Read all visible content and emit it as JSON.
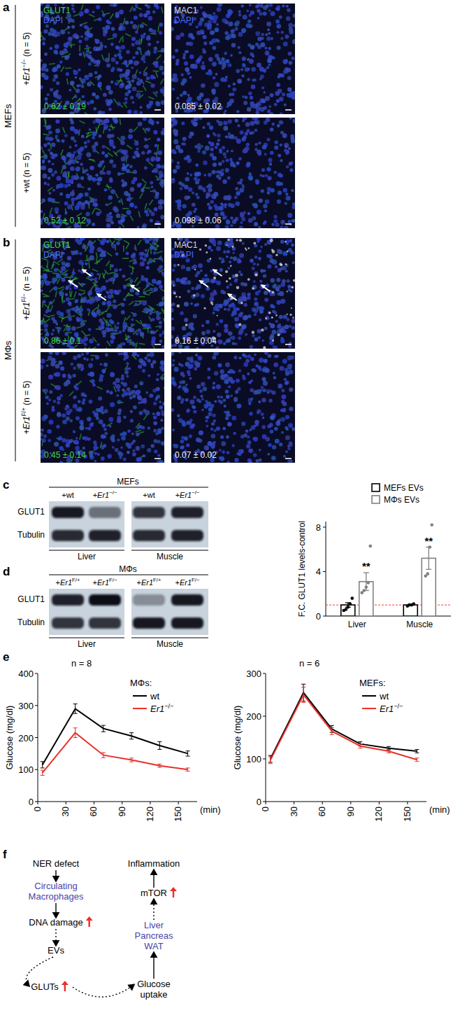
{
  "panel_labels": [
    "a",
    "b",
    "c",
    "d",
    "e",
    "f"
  ],
  "microscopy": [
    {
      "group": "MEFs",
      "columns": [
        [
          "GLUT1",
          "DAPI"
        ],
        [
          "MAC1",
          "DAPI"
        ]
      ],
      "rows": [
        {
          "label": "+Er1−/− (n = 5)",
          "quants": [
            "0.62 ± 0.19",
            "0.085 ± 0.02"
          ]
        },
        {
          "label": "+wt (n = 5)",
          "quants": [
            "0.52 ± 0.12",
            "0.098 ± 0.06"
          ]
        }
      ]
    },
    {
      "group": "MΦs",
      "columns": [
        [
          "GLUT1",
          "DAPI"
        ],
        [
          "MAC1",
          "DAPI"
        ]
      ],
      "rows": [
        {
          "label": "+Er1F/− (n = 5)",
          "quants": [
            "0.86 ± 0.1",
            "0.16 ± 0.04"
          ]
        },
        {
          "label": "+Er1F/+ (n = 5)",
          "quants": [
            "0.45 ± 0.14",
            "0.07 ± 0.02"
          ]
        }
      ]
    }
  ],
  "blots": [
    {
      "group": "MEFs",
      "lanes": [
        "+wt",
        "+Er1−/−",
        "+wt",
        "+Er1−/−"
      ],
      "rows": [
        "GLUT1",
        "Tubulin"
      ],
      "tissues": [
        "Liver",
        "Muscle"
      ]
    },
    {
      "group": "MΦs",
      "lanes": [
        "+Er1F/+",
        "+Er1F/−",
        "+Er1F/+",
        "+Er1F/−"
      ],
      "rows": [
        "GLUT1",
        "Tubulin"
      ],
      "tissues": [
        "Liver",
        "Muscle"
      ]
    }
  ],
  "chart_data": [
    {
      "type": "bar",
      "ylabel": "F.C. GLUT1 levels-control",
      "categories": [
        "Liver",
        "Muscle"
      ],
      "ylim": [
        0,
        8.5
      ],
      "yticks": [
        0,
        4,
        8
      ],
      "legend": "upper right",
      "reference_line": 1,
      "series": [
        {
          "name": "MEFs EVs",
          "color": "#000000",
          "values": [
            1.0,
            1.0
          ],
          "errors": [
            0.2,
            0.05
          ],
          "points": [
            [
              0.5,
              0.6,
              0.8,
              1.1,
              1.6
            ],
            [
              0.9,
              1.0,
              1.0,
              1.1
            ]
          ]
        },
        {
          "name": "MΦs EVs",
          "color": "#808080",
          "values": [
            3.1,
            5.2
          ],
          "errors": [
            0.8,
            1.0
          ],
          "points": [
            [
              2.1,
              2.3,
              2.6,
              3.0,
              6.3
            ],
            [
              3.6,
              3.8,
              6.2,
              8.2
            ]
          ]
        }
      ],
      "annotations": [
        {
          "text": "**",
          "category": 0,
          "series": 1
        },
        {
          "text": "**",
          "category": 1,
          "series": 1
        }
      ]
    },
    {
      "type": "line",
      "title": "n = 8",
      "legend_title": "MΦs:",
      "xlabel": "(min)",
      "ylabel": "Glucose (mg/dl)",
      "x": [
        5,
        40,
        70,
        100,
        130,
        160
      ],
      "xlim": [
        0,
        170
      ],
      "xticks": [
        0,
        30,
        60,
        90,
        120,
        150
      ],
      "ylim": [
        0,
        400
      ],
      "yticks": [
        0,
        100,
        200,
        300,
        400
      ],
      "legend": "upper right",
      "series": [
        {
          "name": "wt",
          "color": "#000000",
          "values": [
            115,
            290,
            228,
            205,
            175,
            150
          ],
          "errors": [
            10,
            15,
            10,
            10,
            12,
            8
          ]
        },
        {
          "name": "Er1−/−",
          "color": "#e8302a",
          "values": [
            90,
            215,
            145,
            130,
            112,
            100
          ],
          "errors": [
            8,
            15,
            8,
            6,
            5,
            5
          ]
        }
      ]
    },
    {
      "type": "line",
      "title": "n = 6",
      "legend_title": "MEFs:",
      "xlabel": "(min)",
      "ylabel": "Glucose (mg/dl)",
      "x": [
        5,
        40,
        70,
        100,
        130,
        160
      ],
      "xlim": [
        0,
        170
      ],
      "xticks": [
        0,
        30,
        60,
        90,
        120,
        150
      ],
      "ylim": [
        0,
        300
      ],
      "yticks": [
        0,
        100,
        200,
        300
      ],
      "legend": "upper right",
      "series": [
        {
          "name": "wt",
          "color": "#000000",
          "values": [
            100,
            255,
            170,
            135,
            125,
            118
          ],
          "errors": [
            8,
            20,
            8,
            5,
            4,
            4
          ]
        },
        {
          "name": "Er1−/−",
          "color": "#e8302a",
          "values": [
            97,
            250,
            165,
            130,
            118,
            98
          ],
          "errors": [
            8,
            18,
            8,
            5,
            4,
            4
          ]
        }
      ]
    }
  ],
  "diagram": {
    "nodes": [
      {
        "lines": [
          "NER defect"
        ],
        "color": "#000000",
        "up": false
      },
      {
        "lines": [
          "Circulating",
          "Macrophages"
        ],
        "color": "#4b44a6",
        "up": false
      },
      {
        "lines": [
          "DNA damage"
        ],
        "color": "#000000",
        "up": true
      },
      {
        "lines": [
          "EVs"
        ],
        "color": "#000000",
        "up": false
      },
      {
        "lines": [
          "GLUTs"
        ],
        "color": "#000000",
        "up": true
      },
      {
        "lines": [
          "Glucose",
          "uptake"
        ],
        "color": "#000000",
        "up": false
      },
      {
        "lines": [
          "Liver",
          "Pancreas",
          "WAT"
        ],
        "color": "#4b44a6",
        "up": false
      },
      {
        "lines": [
          "mTOR"
        ],
        "color": "#000000",
        "up": true
      },
      {
        "lines": [
          "Inflammation"
        ],
        "color": "#000000",
        "up": false
      }
    ],
    "edges": [
      {
        "from": 0,
        "to": 1,
        "line_style": "solid"
      },
      {
        "from": 1,
        "to": 2,
        "line_style": "solid"
      },
      {
        "from": 2,
        "to": 3,
        "line_style": "dotted"
      },
      {
        "from": 3,
        "to": 4,
        "line_style": "dotted"
      },
      {
        "from": 4,
        "to": 5,
        "line_style": "dotted"
      },
      {
        "from": 5,
        "to": 6,
        "line_style": "solid"
      },
      {
        "from": 6,
        "to": 7,
        "line_style": "dotted"
      },
      {
        "from": 7,
        "to": 8,
        "line_style": "solid"
      }
    ]
  }
}
